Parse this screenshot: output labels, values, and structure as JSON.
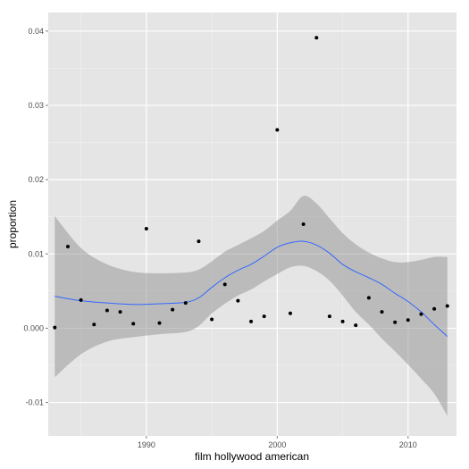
{
  "chart_data": {
    "type": "scatter",
    "title": "",
    "xlabel": "film hollywood american",
    "ylabel": "proportion",
    "xlim": [
      1982.5,
      2013.7
    ],
    "ylim": [
      -0.0145,
      0.0425
    ],
    "x_ticks": [
      1990,
      2000,
      2010
    ],
    "x_tick_labels": [
      "1990",
      "2000",
      "2010"
    ],
    "y_ticks": [
      -0.01,
      0.0,
      0.01,
      0.02,
      0.03,
      0.04
    ],
    "y_tick_labels": [
      "-0.01",
      "0.000",
      "0.01",
      "0.02",
      "0.03",
      "0.04"
    ],
    "grid": true,
    "background": "#e5e5e5",
    "points": {
      "color": "#000000",
      "x": [
        1983,
        1984,
        1985,
        1986,
        1987,
        1988,
        1989,
        1990,
        1991,
        1992,
        1993,
        1994,
        1995,
        1996,
        1997,
        1998,
        1999,
        2000,
        2001,
        2002,
        2003,
        2004,
        2005,
        2006,
        2007,
        2008,
        2009,
        2010,
        2011,
        2012,
        2013
      ],
      "y": [
        0.0001,
        0.011,
        0.0038,
        0.0005,
        0.0024,
        0.0022,
        0.0006,
        0.0134,
        0.0007,
        0.0025,
        0.0034,
        0.0117,
        0.0012,
        0.0059,
        0.0037,
        0.0009,
        0.0016,
        0.0267,
        0.002,
        0.014,
        0.0391,
        0.0016,
        0.0009,
        0.0004,
        0.0041,
        0.0022,
        0.0008,
        0.0011,
        0.0019,
        0.0026,
        0.003
      ]
    },
    "smooth": {
      "color": "#3366ff",
      "band_color": "#999999",
      "x": [
        1983,
        1985,
        1987,
        1989,
        1991,
        1993,
        1994,
        1995,
        1996,
        1997,
        1998,
        1999,
        2000,
        2001,
        2002,
        2003,
        2004,
        2005,
        2006,
        2007,
        2008,
        2009,
        2010,
        2011,
        2012,
        2013
      ],
      "y": [
        0.0043,
        0.0037,
        0.0034,
        0.0032,
        0.0033,
        0.0035,
        0.0041,
        0.0055,
        0.0068,
        0.0078,
        0.0086,
        0.0097,
        0.0109,
        0.0115,
        0.0117,
        0.0112,
        0.0101,
        0.0086,
        0.0076,
        0.0068,
        0.0059,
        0.0047,
        0.0036,
        0.0022,
        0.0005,
        -0.0011
      ],
      "lower": [
        -0.0066,
        -0.0035,
        -0.0018,
        -0.0012,
        -0.0008,
        -0.0005,
        0.0003,
        0.002,
        0.0033,
        0.0044,
        0.0052,
        0.0063,
        0.0073,
        0.0082,
        0.0084,
        0.0077,
        0.0064,
        0.0044,
        0.0022,
        0.0005,
        -0.0014,
        -0.0031,
        -0.0049,
        -0.0068,
        -0.0088,
        -0.0118
      ],
      "upper": [
        0.0151,
        0.0108,
        0.0086,
        0.0076,
        0.0074,
        0.0075,
        0.0079,
        0.009,
        0.0103,
        0.0112,
        0.0121,
        0.0131,
        0.0145,
        0.0158,
        0.0178,
        0.0168,
        0.0148,
        0.0128,
        0.0113,
        0.0102,
        0.0094,
        0.0089,
        0.0089,
        0.0092,
        0.0096,
        0.0096
      ]
    }
  }
}
